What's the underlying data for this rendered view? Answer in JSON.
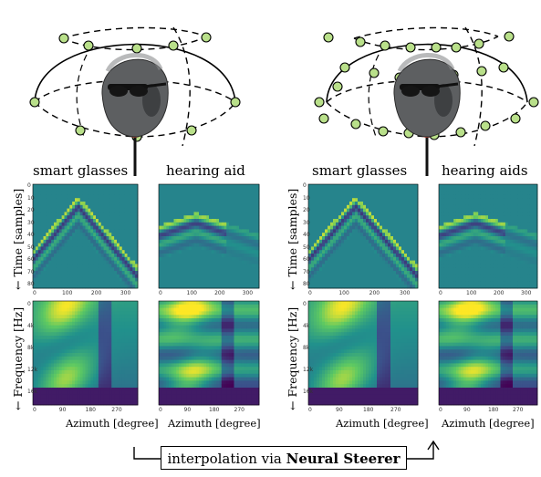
{
  "figure": {
    "left": {
      "spec_titles": [
        "smart glasses",
        "hearing aid"
      ]
    },
    "right": {
      "spec_titles": [
        "smart glasses",
        "hearing aids"
      ]
    },
    "y_label_time": "← Time [samples]",
    "y_label_freq": "← Frequency [Hz]",
    "x_label": "Azimuth [degree]",
    "time_ticks": [
      "0",
      "10",
      "20",
      "30",
      "40",
      "50",
      "60",
      "70",
      "80"
    ],
    "azimuth_ticks_top": [
      "0",
      "100",
      "200",
      "300"
    ],
    "azimuth_ticks_bottom": [
      "0",
      "90",
      "180",
      "270"
    ],
    "freq_ticks": [
      "0",
      "4k",
      "8k",
      "12k",
      "16k"
    ],
    "caption": {
      "prefix": "interpolation via ",
      "bold": "Neural Steerer"
    },
    "colors": {
      "marker_fill": "#b9e08a",
      "colormap": "viridis"
    }
  }
}
